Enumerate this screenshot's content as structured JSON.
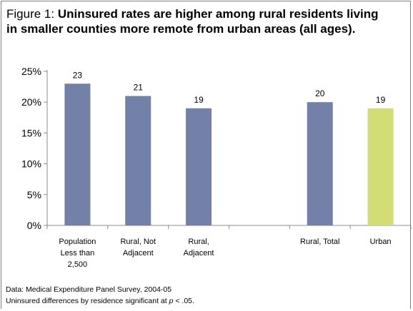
{
  "title": {
    "prefix": "Figure 1: ",
    "main": "Uninsured rates are higher among rural residents living in smaller counties more remote from urban areas (all ages)."
  },
  "footnotes": {
    "source": "Data: Medical Expenditure Panel Survey, 2004-05",
    "significance_pre": "Uninsured differences by residence significant at ",
    "significance_p": "p",
    "significance_post": " < .05."
  },
  "colors": {
    "rural_bar": "#7380a8",
    "urban_bar": "#d4dc76",
    "axis": "#8c8c8c"
  },
  "chart_data": {
    "type": "bar",
    "categories": [
      [
        "Population",
        "Less than",
        "2,500"
      ],
      [
        "Rural, Not",
        "Adjacent"
      ],
      [
        "Rural,",
        "Adjacent"
      ],
      [
        ""
      ],
      [
        "Rural, Total"
      ],
      [
        "Urban"
      ]
    ],
    "values": [
      23,
      21,
      19,
      null,
      20,
      19
    ],
    "data_labels": [
      "23",
      "21",
      "19",
      "",
      "20",
      "19"
    ],
    "bar_colors": [
      "#7380a8",
      "#7380a8",
      "#7380a8",
      null,
      "#7380a8",
      "#d4dc76"
    ],
    "ylim": [
      0,
      25
    ],
    "yticks": [
      0,
      5,
      10,
      15,
      20,
      25
    ],
    "ytick_labels": [
      "0%",
      "5%",
      "10%",
      "15%",
      "20%",
      "25%"
    ],
    "grid": false,
    "legend": "none"
  }
}
